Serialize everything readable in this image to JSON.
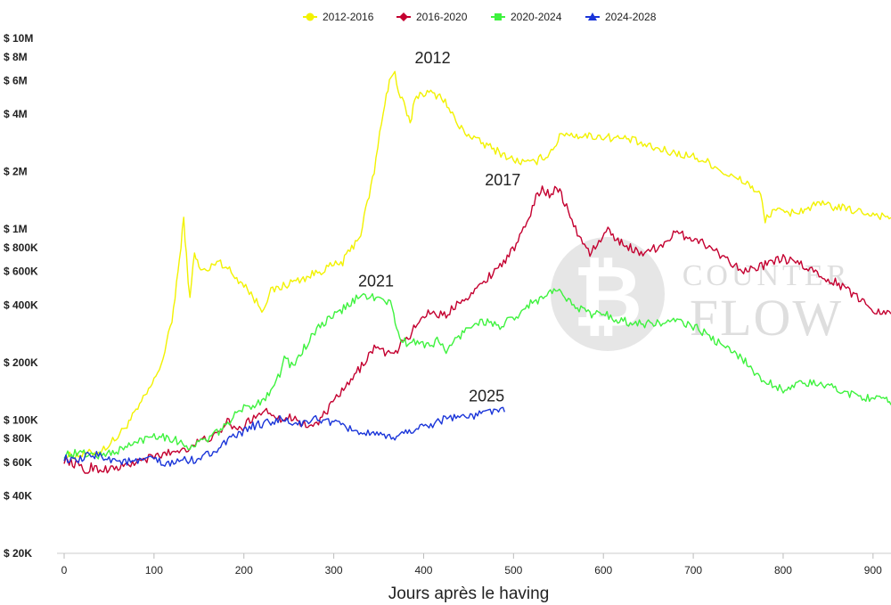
{
  "chart_data": {
    "type": "line",
    "title": "",
    "xlabel": "Jours après le having",
    "ylabel": "",
    "y_scale": "log",
    "xlim": [
      0,
      920
    ],
    "ylim": [
      20000,
      10000000
    ],
    "x_ticks": [
      0,
      100,
      200,
      300,
      400,
      500,
      600,
      700,
      800,
      900
    ],
    "y_ticks": [
      {
        "value": 10000000,
        "label": "$ 10M"
      },
      {
        "value": 8000000,
        "label": "$ 8M"
      },
      {
        "value": 6000000,
        "label": "$ 6M"
      },
      {
        "value": 4000000,
        "label": "$ 4M"
      },
      {
        "value": 2000000,
        "label": "$ 2M"
      },
      {
        "value": 1000000,
        "label": "$ 1M"
      },
      {
        "value": 800000,
        "label": "$ 800K"
      },
      {
        "value": 600000,
        "label": "$ 600K"
      },
      {
        "value": 400000,
        "label": "$ 400K"
      },
      {
        "value": 200000,
        "label": "$ 200K"
      },
      {
        "value": 100000,
        "label": "$ 100K"
      },
      {
        "value": 80000,
        "label": "$ 80K"
      },
      {
        "value": 60000,
        "label": "$ 60K"
      },
      {
        "value": 40000,
        "label": "$ 40K"
      },
      {
        "value": 20000,
        "label": "$ 20K"
      }
    ],
    "grid": false,
    "legend_position": "top-center",
    "series": [
      {
        "name": "2012-2016",
        "color": "#f2f200",
        "marker": "circle",
        "x": [
          0,
          20,
          40,
          60,
          80,
          100,
          110,
          120,
          125,
          130,
          133,
          136,
          140,
          145,
          150,
          160,
          170,
          180,
          190,
          200,
          210,
          220,
          230,
          250,
          270,
          290,
          310,
          330,
          345,
          355,
          362,
          368,
          372,
          378,
          385,
          390,
          400,
          420,
          440,
          460,
          480,
          500,
          520,
          540,
          555,
          570,
          600,
          630,
          650,
          680,
          700,
          720,
          740,
          760,
          775,
          780,
          790,
          800,
          820,
          840,
          860,
          880,
          900,
          920
        ],
        "y": [
          64000,
          66000,
          68000,
          82000,
          110000,
          160000,
          210000,
          330000,
          520000,
          800000,
          1150000,
          720000,
          420000,
          780000,
          620000,
          600000,
          690000,
          640000,
          560000,
          520000,
          440000,
          380000,
          470000,
          520000,
          560000,
          620000,
          670000,
          950000,
          2000000,
          4200000,
          6000000,
          6600000,
          5200000,
          4500000,
          3500000,
          4900000,
          5200000,
          5000000,
          3400000,
          2900000,
          2600000,
          2300000,
          2200000,
          2500000,
          3200000,
          3100000,
          3050000,
          2950000,
          2700000,
          2500000,
          2400000,
          2200000,
          1900000,
          1750000,
          1500000,
          1100000,
          1300000,
          1200000,
          1250000,
          1350000,
          1300000,
          1250000,
          1200000,
          1150000
        ]
      },
      {
        "name": "2016-2020",
        "color": "#c40030",
        "marker": "diamond",
        "x": [
          0,
          15,
          25,
          30,
          40,
          60,
          80,
          100,
          120,
          140,
          150,
          160,
          175,
          180,
          185,
          195,
          205,
          215,
          225,
          235,
          245,
          255,
          265,
          275,
          285,
          295,
          305,
          315,
          325,
          335,
          345,
          355,
          365,
          375,
          385,
          395,
          405,
          415,
          425,
          435,
          445,
          455,
          465,
          475,
          485,
          495,
          505,
          515,
          525,
          532,
          540,
          548,
          555,
          565,
          575,
          585,
          595,
          605,
          620,
          640,
          660,
          680,
          700,
          720,
          740,
          760,
          780,
          800,
          820,
          840,
          860,
          880,
          900,
          920
        ],
        "y": [
          62000,
          58000,
          53000,
          57000,
          55000,
          56000,
          60000,
          64000,
          68000,
          72000,
          77000,
          80000,
          85000,
          100000,
          95000,
          88000,
          98000,
          108000,
          112000,
          106000,
          100000,
          104000,
          96000,
          92000,
          100000,
          115000,
          135000,
          150000,
          175000,
          205000,
          240000,
          230000,
          215000,
          250000,
          280000,
          330000,
          370000,
          360000,
          350000,
          400000,
          440000,
          460000,
          520000,
          580000,
          650000,
          730000,
          850000,
          1100000,
          1450000,
          1650000,
          1500000,
          1700000,
          1450000,
          1100000,
          880000,
          750000,
          850000,
          980000,
          850000,
          750000,
          800000,
          950000,
          900000,
          800000,
          680000,
          600000,
          650000,
          700000,
          650000,
          580000,
          520000,
          450000,
          380000,
          360000
        ]
      },
      {
        "name": "2020-2024",
        "color": "#3ef23e",
        "marker": "square",
        "x": [
          0,
          20,
          40,
          60,
          80,
          100,
          120,
          140,
          160,
          170,
          180,
          190,
          200,
          210,
          220,
          230,
          240,
          245,
          255,
          265,
          275,
          285,
          295,
          305,
          315,
          325,
          335,
          345,
          355,
          365,
          370,
          375,
          385,
          395,
          405,
          415,
          425,
          435,
          445,
          455,
          465,
          475,
          485,
          495,
          505,
          515,
          525,
          535,
          545,
          555,
          565,
          575,
          585,
          600,
          620,
          640,
          660,
          680,
          700,
          720,
          740,
          750,
          760,
          770,
          780,
          800,
          820,
          840,
          860,
          880,
          900,
          915,
          920
        ],
        "y": [
          66000,
          67000,
          65000,
          69000,
          76000,
          84000,
          80000,
          72000,
          80000,
          85000,
          95000,
          105000,
          115000,
          120000,
          125000,
          145000,
          175000,
          210000,
          190000,
          230000,
          270000,
          310000,
          340000,
          360000,
          400000,
          430000,
          450000,
          440000,
          420000,
          400000,
          300000,
          260000,
          250000,
          260000,
          245000,
          260000,
          230000,
          260000,
          290000,
          320000,
          330000,
          320000,
          310000,
          330000,
          340000,
          400000,
          420000,
          440000,
          480000,
          450000,
          420000,
          380000,
          360000,
          360000,
          330000,
          320000,
          320000,
          330000,
          310000,
          270000,
          230000,
          220000,
          200000,
          170000,
          160000,
          145000,
          155000,
          155000,
          145000,
          135000,
          130000,
          125000,
          120000
        ]
      },
      {
        "name": "2024-2028",
        "color": "#1a35d9",
        "marker": "triangle",
        "x": [
          0,
          10,
          20,
          30,
          40,
          60,
          80,
          100,
          110,
          120,
          130,
          140,
          160,
          180,
          200,
          210,
          220,
          230,
          240,
          250,
          260,
          270,
          280,
          290,
          300,
          310,
          320,
          330,
          340,
          350,
          360,
          370,
          380,
          390,
          400,
          410,
          420,
          430,
          440,
          450,
          460,
          470,
          480,
          485,
          490
        ],
        "y": [
          64000,
          60000,
          62000,
          66000,
          65000,
          61000,
          60000,
          63000,
          58000,
          59000,
          62000,
          61000,
          66000,
          76000,
          87000,
          93000,
          95000,
          98000,
          100000,
          97000,
          96000,
          95000,
          102000,
          100000,
          96000,
          92000,
          90000,
          86000,
          84000,
          82000,
          81000,
          82000,
          86000,
          90000,
          92000,
          96000,
          100000,
          104000,
          105000,
          103000,
          106000,
          110000,
          114000,
          112000,
          110000
        ]
      }
    ],
    "annotations": [
      {
        "text": "2012",
        "x": 410,
        "y": 7400000
      },
      {
        "text": "2017",
        "x": 488,
        "y": 1700000
      },
      {
        "text": "2021",
        "x": 347,
        "y": 500000
      },
      {
        "text": "2025",
        "x": 470,
        "y": 125000
      }
    ]
  },
  "watermark": {
    "line1": "COUNTER",
    "line2": "FLOW"
  }
}
